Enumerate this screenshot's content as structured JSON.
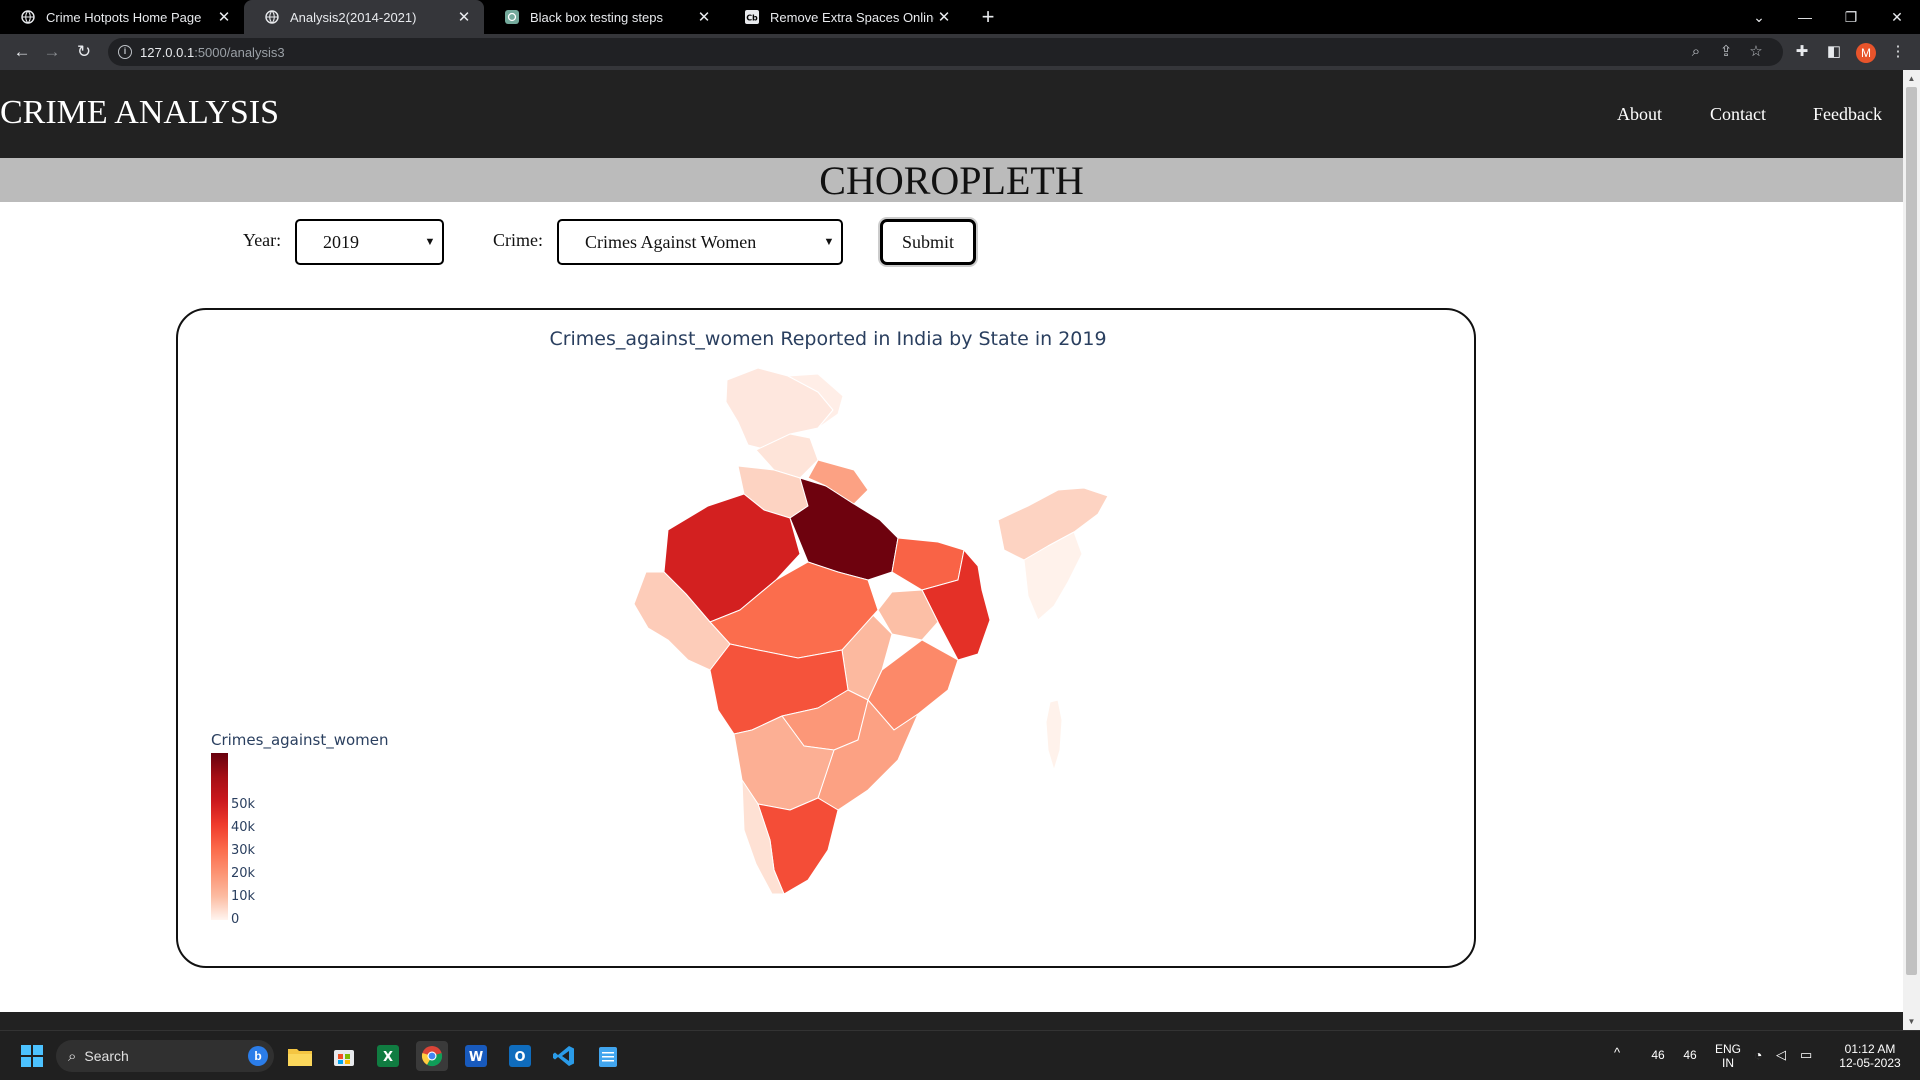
{
  "browser": {
    "tabs": [
      {
        "title": "Crime Hotpots Home Page",
        "active": false
      },
      {
        "title": "Analysis2(2014-2021)",
        "active": true
      },
      {
        "title": "Black box testing steps",
        "active": false
      },
      {
        "title": "Remove Extra Spaces Online: Wh",
        "active": false
      }
    ],
    "url_host": "127.0.0.1",
    "url_path": ":5000/analysis3",
    "profile_initial": "M"
  },
  "site": {
    "brand": "CRIME ANALYSIS",
    "nav": {
      "about": "About",
      "contact": "Contact",
      "feedback": "Feedback"
    },
    "section_title": "CHOROPLETH"
  },
  "form": {
    "year_label": "Year:",
    "year_value": "2019",
    "crime_label": "Crime:",
    "crime_value": "Crimes Against Women",
    "submit_label": "Submit"
  },
  "chart_data": {
    "type": "choropleth",
    "title": "Crimes_against_women Reported in India by State in 2019",
    "colorbar_title": "Crimes_against_women",
    "colorscale": [
      "#fff5f0",
      "#fcbba1",
      "#fc9272",
      "#fb6a4a",
      "#ef3b2c",
      "#cb181d",
      "#a50f15",
      "#67000d"
    ],
    "colorbar_range": [
      0,
      60000
    ],
    "colorbar_ticks": [
      {
        "value": 0,
        "label": "0"
      },
      {
        "value": 10000,
        "label": "10k"
      },
      {
        "value": 20000,
        "label": "20k"
      },
      {
        "value": 30000,
        "label": "30k"
      },
      {
        "value": 40000,
        "label": "40k"
      },
      {
        "value": 50000,
        "label": "50k"
      }
    ],
    "regions": [
      {
        "value": 2000
      },
      {
        "value": 1000
      },
      {
        "value": 2500
      },
      {
        "value": 5000
      },
      {
        "value": 41000
      },
      {
        "value": 59000
      },
      {
        "value": 14000
      },
      {
        "value": 27000
      },
      {
        "value": 37000
      },
      {
        "value": 8000
      },
      {
        "value": 9000
      },
      {
        "value": 25000
      },
      {
        "value": 30000
      },
      {
        "value": 19000
      },
      {
        "value": 16000
      },
      {
        "value": 14000
      },
      {
        "value": 11000
      },
      {
        "value": 6000
      },
      {
        "value": 31000
      },
      {
        "value": 3000
      },
      {
        "value": 5000
      },
      {
        "value": 500
      },
      {
        "value": 500
      }
    ]
  },
  "taskbar": {
    "search_placeholder": "Search",
    "tray_a": "46",
    "tray_b": "46",
    "lang_1": "ENG",
    "lang_2": "IN",
    "time": "01:12 AM",
    "date": "12-05-2023"
  }
}
